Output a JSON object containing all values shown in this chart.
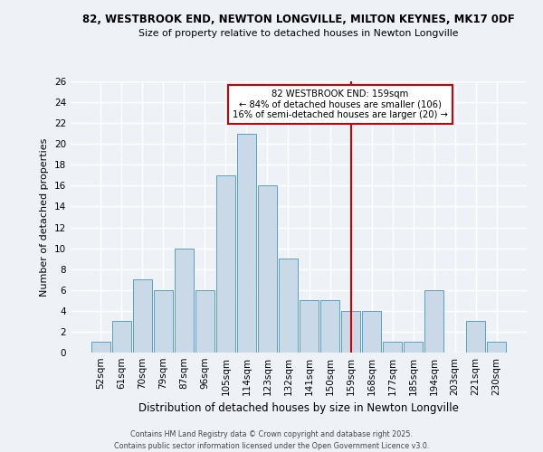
{
  "title_line1": "82, WESTBROOK END, NEWTON LONGVILLE, MILTON KEYNES, MK17 0DF",
  "title_line2": "Size of property relative to detached houses in Newton Longville",
  "xlabel": "Distribution of detached houses by size in Newton Longville",
  "ylabel": "Number of detached properties",
  "categories": [
    "52sqm",
    "61sqm",
    "70sqm",
    "79sqm",
    "87sqm",
    "96sqm",
    "105sqm",
    "114sqm",
    "123sqm",
    "132sqm",
    "141sqm",
    "150sqm",
    "159sqm",
    "168sqm",
    "177sqm",
    "185sqm",
    "194sqm",
    "203sqm",
    "221sqm",
    "230sqm"
  ],
  "values": [
    1,
    3,
    7,
    6,
    10,
    6,
    17,
    21,
    16,
    9,
    5,
    5,
    4,
    4,
    1,
    1,
    6,
    0,
    3,
    1
  ],
  "bar_color": "#c9d9e8",
  "bar_edge_color": "#5a9fc5",
  "vline_x": 12,
  "vline_color": "#cc0000",
  "annotation_title": "82 WESTBROOK END: 159sqm",
  "annotation_line1": "← 84% of detached houses are smaller (106)",
  "annotation_line2": "16% of semi-detached houses are larger (20) →",
  "annotation_box_color": "#cc0000",
  "ylim": [
    0,
    26
  ],
  "yticks": [
    0,
    2,
    4,
    6,
    8,
    10,
    12,
    14,
    16,
    18,
    20,
    22,
    24,
    26
  ],
  "background_color": "#eef2f7",
  "grid_color": "#ffffff",
  "footer_line1": "Contains HM Land Registry data © Crown copyright and database right 2025.",
  "footer_line2": "Contains public sector information licensed under the Open Government Licence v3.0."
}
